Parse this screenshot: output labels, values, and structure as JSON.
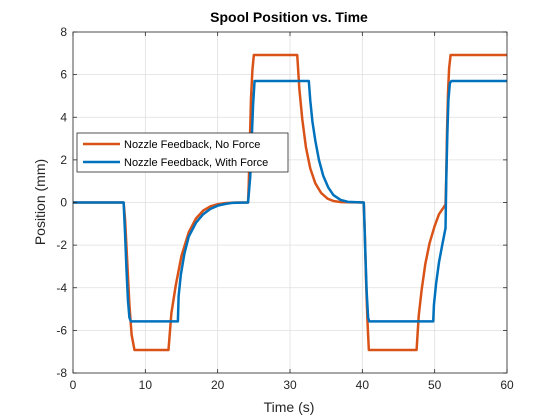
{
  "chart_data": {
    "type": "line",
    "title": "Spool Position vs. Time",
    "xlabel": "Time (s)",
    "ylabel": "Position (mm)",
    "xlim": [
      0,
      60
    ],
    "ylim": [
      -8,
      8
    ],
    "xticks": [
      0,
      10,
      20,
      30,
      40,
      50,
      60
    ],
    "xtick_labels": [
      "0",
      "10",
      "20",
      "30",
      "40",
      "50",
      "60"
    ],
    "yticks": [
      -8,
      -6,
      -4,
      -2,
      0,
      2,
      4,
      6,
      8
    ],
    "ytick_labels": [
      "-8",
      "-6",
      "-4",
      "-2",
      "0",
      "2",
      "4",
      "6",
      "8"
    ],
    "grid": true,
    "legend_position": "center-left",
    "series": [
      {
        "name": "Nozzle Feedback, No Force",
        "color": "#D95319",
        "points": [
          [
            0,
            0
          ],
          [
            7,
            0
          ],
          [
            7.2,
            -0.8
          ],
          [
            7.5,
            -2.8
          ],
          [
            7.8,
            -4.8
          ],
          [
            8.1,
            -6.2
          ],
          [
            8.5,
            -6.92
          ],
          [
            13.2,
            -6.92
          ],
          [
            13.6,
            -5.2
          ],
          [
            14.2,
            -3.9
          ],
          [
            15,
            -2.5
          ],
          [
            16,
            -1.4
          ],
          [
            17,
            -0.75
          ],
          [
            18,
            -0.38
          ],
          [
            19,
            -0.18
          ],
          [
            20,
            -0.08
          ],
          [
            21,
            -0.03
          ],
          [
            22.5,
            0
          ],
          [
            24.2,
            0
          ],
          [
            24.3,
            0.9
          ],
          [
            24.45,
            2.8
          ],
          [
            24.6,
            4.8
          ],
          [
            24.8,
            6.2
          ],
          [
            25,
            6.92
          ],
          [
            31,
            6.92
          ],
          [
            31.3,
            5.3
          ],
          [
            31.7,
            3.9
          ],
          [
            32.2,
            2.6
          ],
          [
            32.8,
            1.6
          ],
          [
            33.5,
            0.9
          ],
          [
            34.3,
            0.45
          ],
          [
            35.2,
            0.18
          ],
          [
            36,
            0.07
          ],
          [
            37,
            0.02
          ],
          [
            40.2,
            0
          ],
          [
            40.35,
            -1.5
          ],
          [
            40.5,
            -3.5
          ],
          [
            40.7,
            -5.5
          ],
          [
            40.9,
            -6.92
          ],
          [
            47.5,
            -6.92
          ],
          [
            47.8,
            -5.3
          ],
          [
            48.2,
            -4.1
          ],
          [
            48.7,
            -2.9
          ],
          [
            49.3,
            -1.9
          ],
          [
            50,
            -1.1
          ],
          [
            50.6,
            -0.55
          ],
          [
            51.2,
            -0.25
          ],
          [
            51.5,
            -0.1
          ],
          [
            51.6,
            1.2
          ],
          [
            51.7,
            3.2
          ],
          [
            51.85,
            5.2
          ],
          [
            52.0,
            6.3
          ],
          [
            52.2,
            6.92
          ],
          [
            60,
            6.92
          ]
        ]
      },
      {
        "name": "Nozzle Feedback, With Force",
        "color": "#0072BD",
        "points": [
          [
            0,
            0
          ],
          [
            7,
            0
          ],
          [
            7.2,
            -1.5
          ],
          [
            7.4,
            -3.2
          ],
          [
            7.6,
            -4.6
          ],
          [
            7.8,
            -5.4
          ],
          [
            8,
            -5.58
          ],
          [
            14.5,
            -5.58
          ],
          [
            14.6,
            -4.4
          ],
          [
            14.9,
            -3.4
          ],
          [
            15.4,
            -2.4
          ],
          [
            16,
            -1.6
          ],
          [
            17,
            -0.95
          ],
          [
            18,
            -0.55
          ],
          [
            19,
            -0.3
          ],
          [
            20,
            -0.15
          ],
          [
            21,
            -0.07
          ],
          [
            22,
            -0.02
          ],
          [
            24.2,
            0
          ],
          [
            24.5,
            1.2
          ],
          [
            24.7,
            2.9
          ],
          [
            24.9,
            4.6
          ],
          [
            25.1,
            5.7
          ],
          [
            32.6,
            5.7
          ],
          [
            32.8,
            4.8
          ],
          [
            33.1,
            3.8
          ],
          [
            33.5,
            2.9
          ],
          [
            34,
            2.0
          ],
          [
            34.6,
            1.25
          ],
          [
            35.3,
            0.7
          ],
          [
            36,
            0.35
          ],
          [
            37,
            0.12
          ],
          [
            38,
            0.03
          ],
          [
            40.2,
            0
          ],
          [
            40.4,
            -2.2
          ],
          [
            40.6,
            -4.2
          ],
          [
            40.8,
            -5.4
          ],
          [
            40.95,
            -5.58
          ],
          [
            49.8,
            -5.58
          ],
          [
            49.9,
            -4.8
          ],
          [
            50.2,
            -3.8
          ],
          [
            50.6,
            -2.8
          ],
          [
            51.1,
            -1.9
          ],
          [
            51.5,
            -1.2
          ],
          [
            51.6,
            1.0
          ],
          [
            51.75,
            3.2
          ],
          [
            51.9,
            4.8
          ],
          [
            52.1,
            5.6
          ],
          [
            52.3,
            5.7
          ],
          [
            60,
            5.7
          ]
        ]
      }
    ]
  }
}
